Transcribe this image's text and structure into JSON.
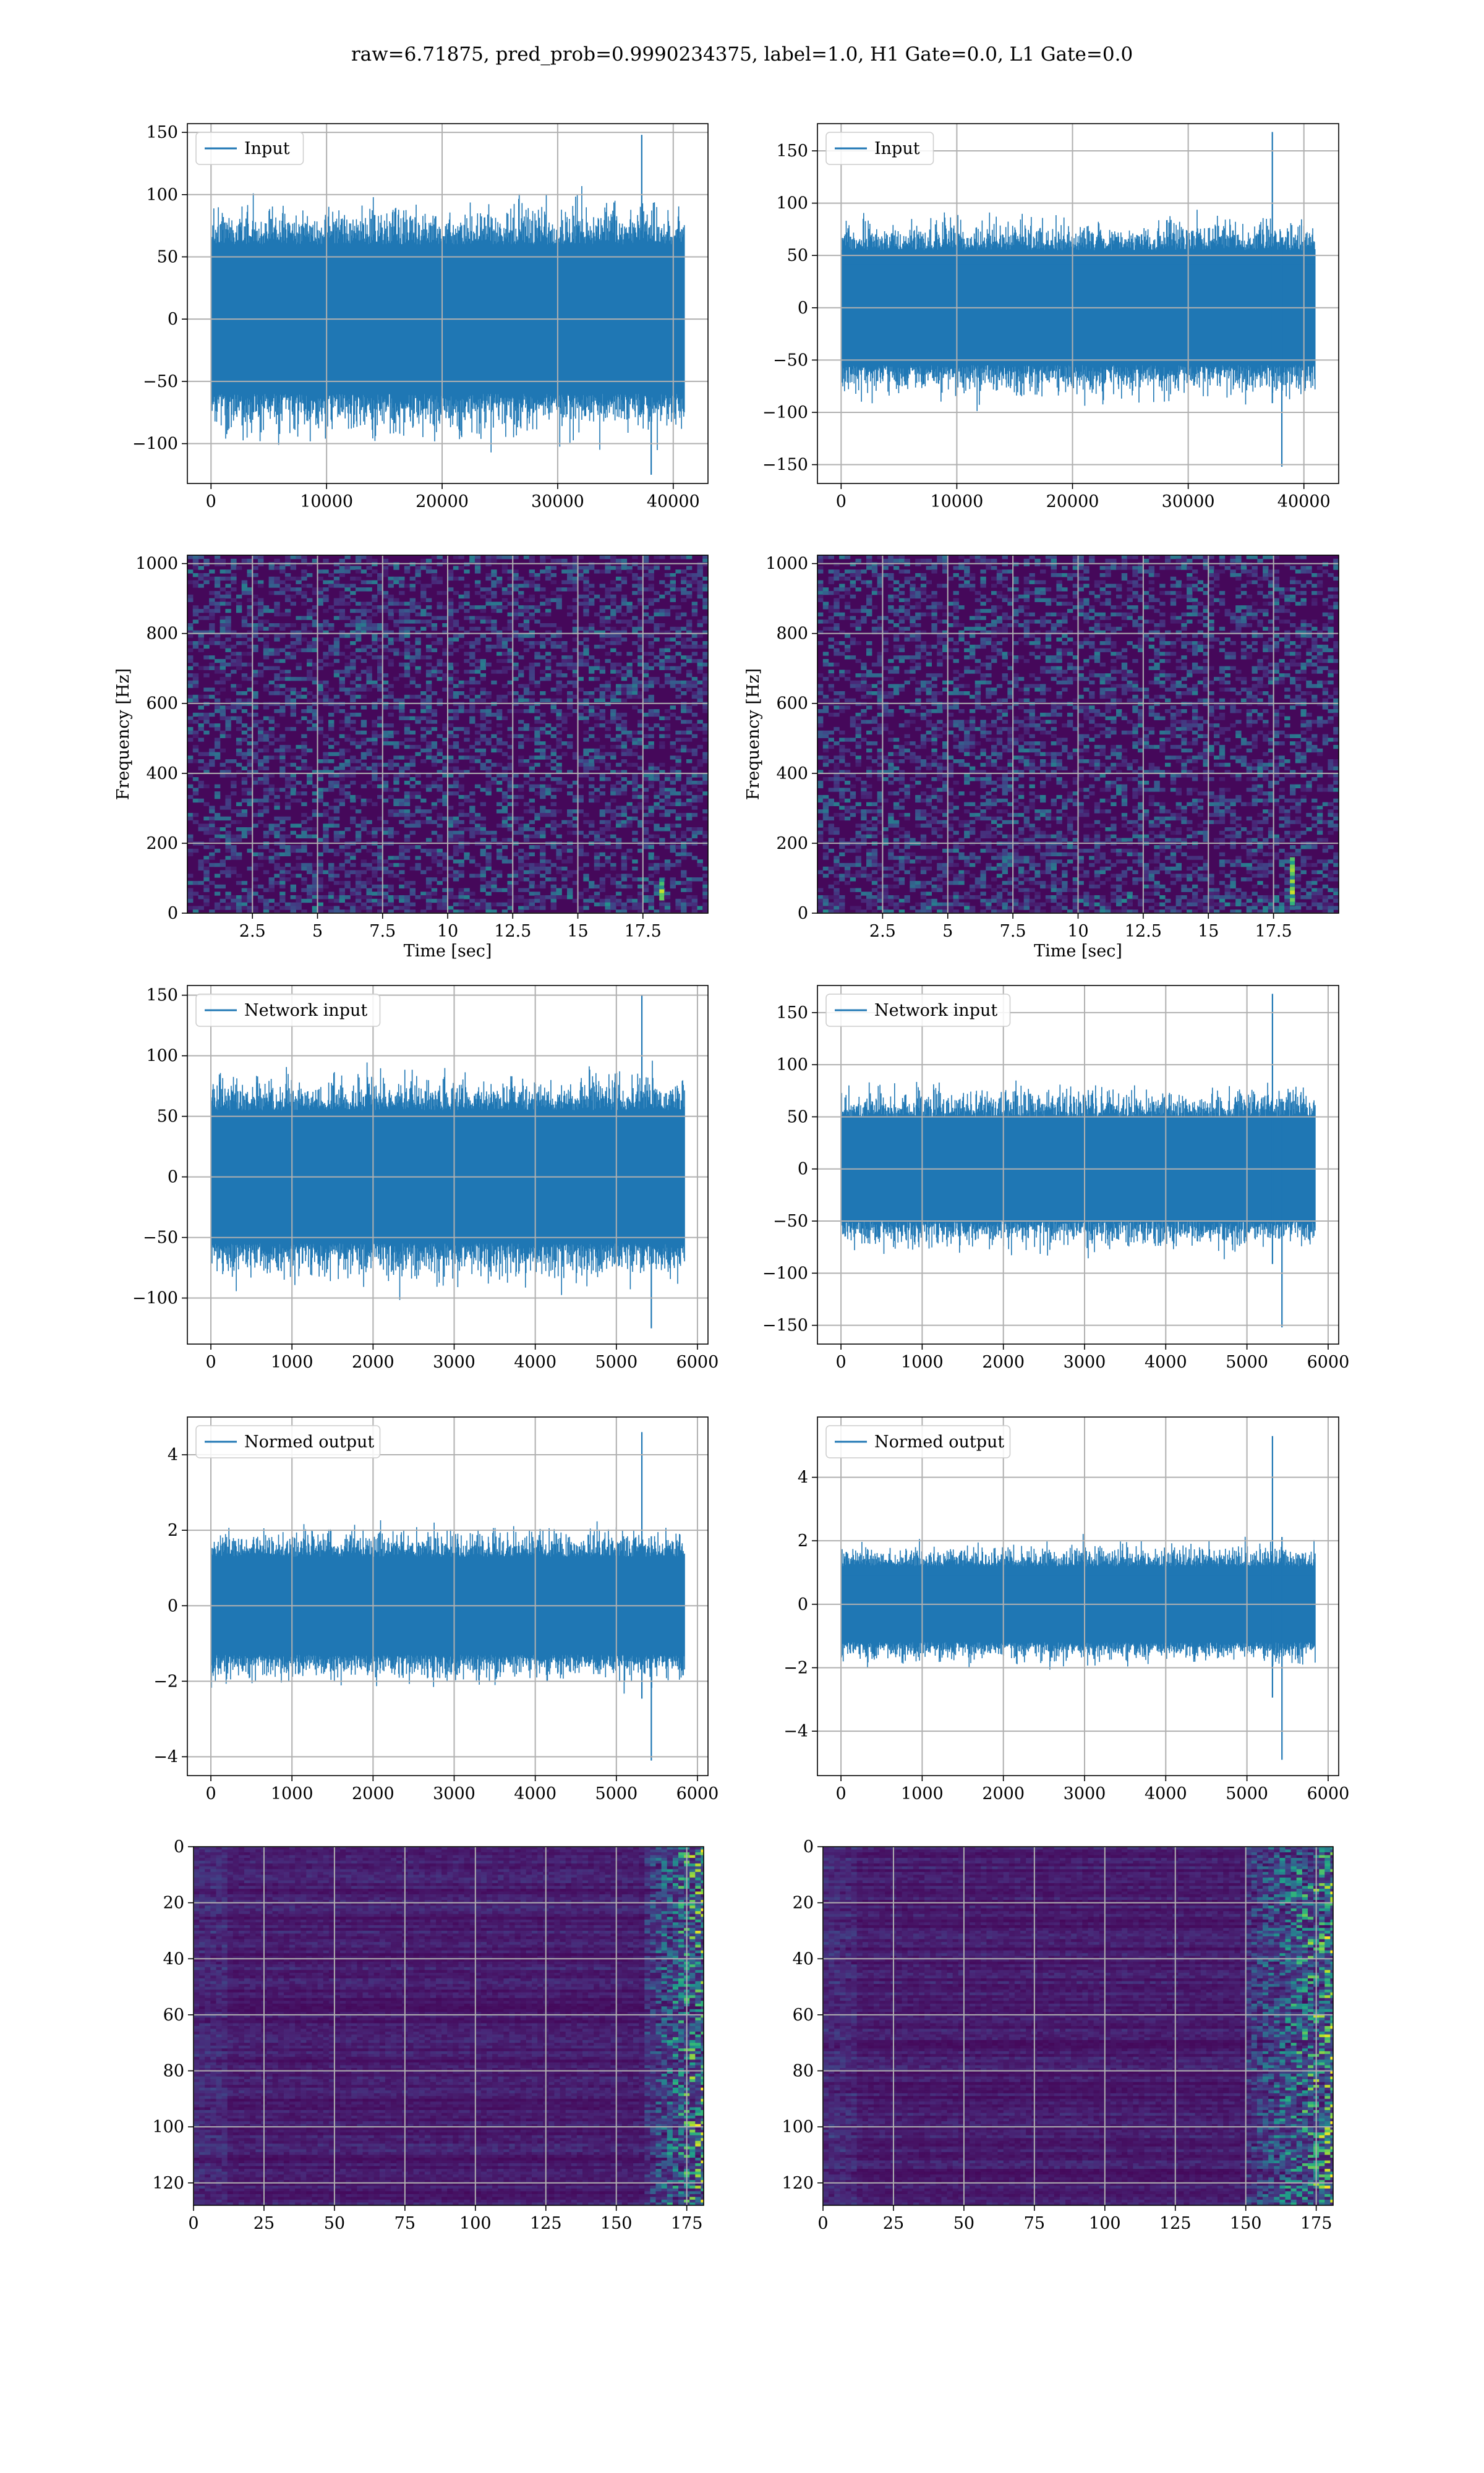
{
  "figure": {
    "title": "raw=6.71875, pred_prob=0.9990234375, label=1.0, H1 Gate=0.0, L1 Gate=0.0",
    "line_color": "#1f77b4",
    "grid_color": "#b0b0b0"
  },
  "chart_data": [
    {
      "id": "h1-input",
      "type": "line",
      "legend": "Input",
      "series": [
        {
          "name": "Input",
          "x_range": [
            0,
            40960
          ],
          "envelope_low": -60,
          "envelope_high": 60,
          "min": -125,
          "max": 148
        }
      ],
      "xlim": [
        -2048,
        43008
      ],
      "ylim": [
        -132,
        157
      ],
      "xticks": [
        0,
        10000,
        20000,
        30000,
        40000
      ],
      "yticks": [
        -100,
        -50,
        0,
        50,
        100,
        150
      ],
      "xlabel": "",
      "ylabel": "",
      "grid": true,
      "legend_position": "upper-left"
    },
    {
      "id": "l1-input",
      "type": "line",
      "legend": "Input",
      "series": [
        {
          "name": "Input",
          "x_range": [
            0,
            40960
          ],
          "envelope_low": -55,
          "envelope_high": 55,
          "min": -152,
          "max": 168
        }
      ],
      "xlim": [
        -2048,
        43008
      ],
      "ylim": [
        -168,
        176
      ],
      "xticks": [
        0,
        10000,
        20000,
        30000,
        40000
      ],
      "yticks": [
        -150,
        -100,
        -50,
        0,
        50,
        100,
        150
      ],
      "xlabel": "",
      "ylabel": "",
      "grid": true,
      "legend_position": "upper-left"
    },
    {
      "id": "h1-spectrogram",
      "type": "heatmap",
      "xlim": [
        0,
        20
      ],
      "ylim": [
        0,
        1024
      ],
      "xticks": [
        2.5,
        5.0,
        7.5,
        10.0,
        12.5,
        15.0,
        17.5
      ],
      "yticks": [
        0,
        200,
        400,
        600,
        800,
        1000
      ],
      "xlabel": "Time [sec]",
      "ylabel": "Frequency [Hz]",
      "colormap": "viridis",
      "grid": true,
      "features": [
        {
          "t": 18.2,
          "f_low": 40,
          "f_high": 100
        }
      ]
    },
    {
      "id": "l1-spectrogram",
      "type": "heatmap",
      "xlim": [
        0,
        20
      ],
      "ylim": [
        0,
        1024
      ],
      "xticks": [
        2.5,
        5.0,
        7.5,
        10.0,
        12.5,
        15.0,
        17.5
      ],
      "yticks": [
        0,
        200,
        400,
        600,
        800,
        1000
      ],
      "xlabel": "Time [sec]",
      "ylabel": "Frequency [Hz]",
      "colormap": "viridis",
      "grid": true,
      "features": [
        {
          "t": 18.2,
          "f_low": 30,
          "f_high": 160
        }
      ]
    },
    {
      "id": "h1-network-input",
      "type": "line",
      "legend": "Network input",
      "series": [
        {
          "name": "Network input",
          "x_range": [
            0,
            5840
          ],
          "envelope_low": -55,
          "envelope_high": 55,
          "min": -125,
          "max": 150
        }
      ],
      "xlim": [
        -290,
        6130
      ],
      "ylim": [
        -138,
        158
      ],
      "xticks": [
        0,
        1000,
        2000,
        3000,
        4000,
        5000,
        6000
      ],
      "yticks": [
        -100,
        -50,
        0,
        50,
        100,
        150
      ],
      "xlabel": "",
      "ylabel": "",
      "grid": true,
      "legend_position": "upper-left"
    },
    {
      "id": "l1-network-input",
      "type": "line",
      "legend": "Network input",
      "series": [
        {
          "name": "Network input",
          "x_range": [
            0,
            5840
          ],
          "envelope_low": -50,
          "envelope_high": 50,
          "min": -152,
          "max": 168
        }
      ],
      "xlim": [
        -290,
        6130
      ],
      "ylim": [
        -168,
        176
      ],
      "xticks": [
        0,
        1000,
        2000,
        3000,
        4000,
        5000,
        6000
      ],
      "yticks": [
        -150,
        -100,
        -50,
        0,
        50,
        100,
        150
      ],
      "xlabel": "",
      "ylabel": "",
      "grid": true,
      "legend_position": "upper-left"
    },
    {
      "id": "h1-normed-output",
      "type": "line",
      "legend": "Normed output",
      "series": [
        {
          "name": "Normed output",
          "x_range": [
            0,
            5840
          ],
          "envelope_low": -1.3,
          "envelope_high": 1.3,
          "min": -4.1,
          "max": 4.6
        }
      ],
      "xlim": [
        -290,
        6130
      ],
      "ylim": [
        -4.5,
        5.0
      ],
      "xticks": [
        0,
        1000,
        2000,
        3000,
        4000,
        5000,
        6000
      ],
      "yticks": [
        -4,
        -2,
        0,
        2,
        4
      ],
      "xlabel": "",
      "ylabel": "",
      "grid": true,
      "legend_position": "upper-left"
    },
    {
      "id": "l1-normed-output",
      "type": "line",
      "legend": "Normed output",
      "series": [
        {
          "name": "Normed output",
          "x_range": [
            0,
            5840
          ],
          "envelope_low": -1.2,
          "envelope_high": 1.2,
          "min": -4.9,
          "max": 5.3
        }
      ],
      "xlim": [
        -290,
        6130
      ],
      "ylim": [
        -5.4,
        5.9
      ],
      "xticks": [
        0,
        1000,
        2000,
        3000,
        4000,
        5000,
        6000
      ],
      "yticks": [
        -4,
        -2,
        0,
        2,
        4
      ],
      "xlabel": "",
      "ylabel": "",
      "grid": true,
      "legend_position": "upper-left"
    },
    {
      "id": "h1-feature-map",
      "type": "heatmap",
      "xlim": [
        0,
        181
      ],
      "ylim": [
        128,
        0
      ],
      "xticks": [
        0,
        25,
        50,
        75,
        100,
        125,
        150,
        175
      ],
      "yticks": [
        0,
        20,
        40,
        60,
        80,
        100,
        120
      ],
      "xlabel": "",
      "ylabel": "",
      "colormap": "viridis",
      "grid": true,
      "active_columns": [
        160,
        181
      ]
    },
    {
      "id": "l1-feature-map",
      "type": "heatmap",
      "xlim": [
        0,
        181
      ],
      "ylim": [
        128,
        0
      ],
      "xticks": [
        0,
        25,
        50,
        75,
        100,
        125,
        150,
        175
      ],
      "yticks": [
        0,
        20,
        40,
        60,
        80,
        100,
        120
      ],
      "xlabel": "",
      "ylabel": "",
      "colormap": "viridis",
      "grid": true,
      "active_columns": [
        150,
        181
      ]
    }
  ]
}
